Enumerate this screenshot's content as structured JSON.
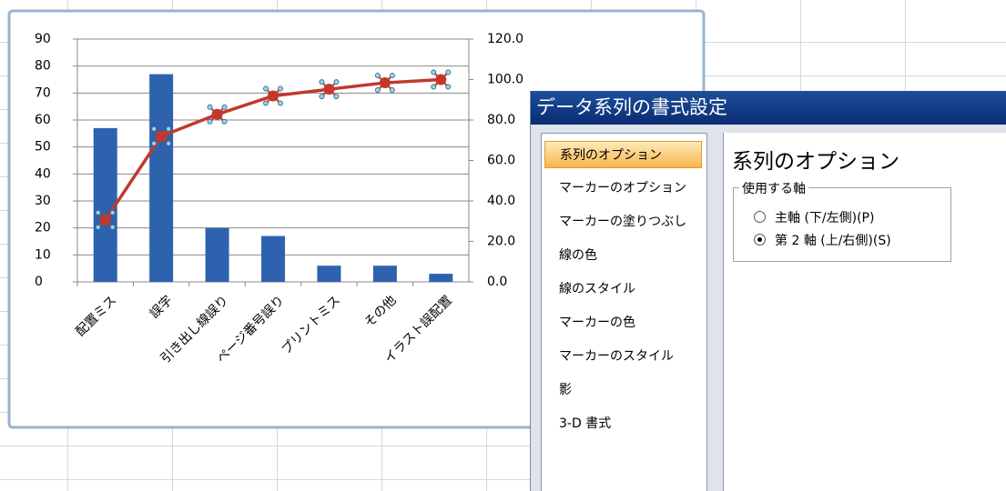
{
  "chart_data": {
    "type": "bar",
    "categories": [
      "配置ミス",
      "誤字",
      "引き出し線誤り",
      "ページ番号誤り",
      "プリントミス",
      "その他",
      "イラスト誤配置"
    ],
    "series": [
      {
        "type": "bar",
        "color": "#2e62ae",
        "values": [
          57,
          77,
          20,
          17,
          6,
          6,
          3
        ]
      },
      {
        "type": "line",
        "color": "#c0392b",
        "axis": "y2",
        "values": [
          30.6,
          72.0,
          82.8,
          91.9,
          95.2,
          98.4,
          100.0
        ]
      }
    ],
    "ylim": [
      0,
      90
    ],
    "yticks": [
      0,
      10,
      20,
      30,
      40,
      50,
      60,
      70,
      80,
      90
    ],
    "y2lim": [
      0,
      120
    ],
    "y2ticks": [
      {
        "value": 0,
        "label": "0.0"
      },
      {
        "value": 20,
        "label": "20.0"
      },
      {
        "value": 40,
        "label": "40.0"
      },
      {
        "value": 60,
        "label": "60.0"
      },
      {
        "value": 80,
        "label": "80.0"
      },
      {
        "value": 100,
        "label": "100.0"
      },
      {
        "value": 120,
        "label": "120.0"
      }
    ],
    "grid": true
  },
  "dialog": {
    "title": "データ系列の書式設定",
    "menu": [
      "系列のオプション",
      "マーカーのオプション",
      "マーカーの塗りつぶし",
      "線の色",
      "線のスタイル",
      "マーカーの色",
      "マーカーのスタイル",
      "影",
      "3-D 書式"
    ],
    "selected_menu": 0,
    "heading": "系列のオプション",
    "group": {
      "label": "使用する軸",
      "options": [
        "主軸 (下/左側)(P)",
        "第 2 軸 (上/右側)(S)"
      ],
      "selected": 1
    }
  }
}
